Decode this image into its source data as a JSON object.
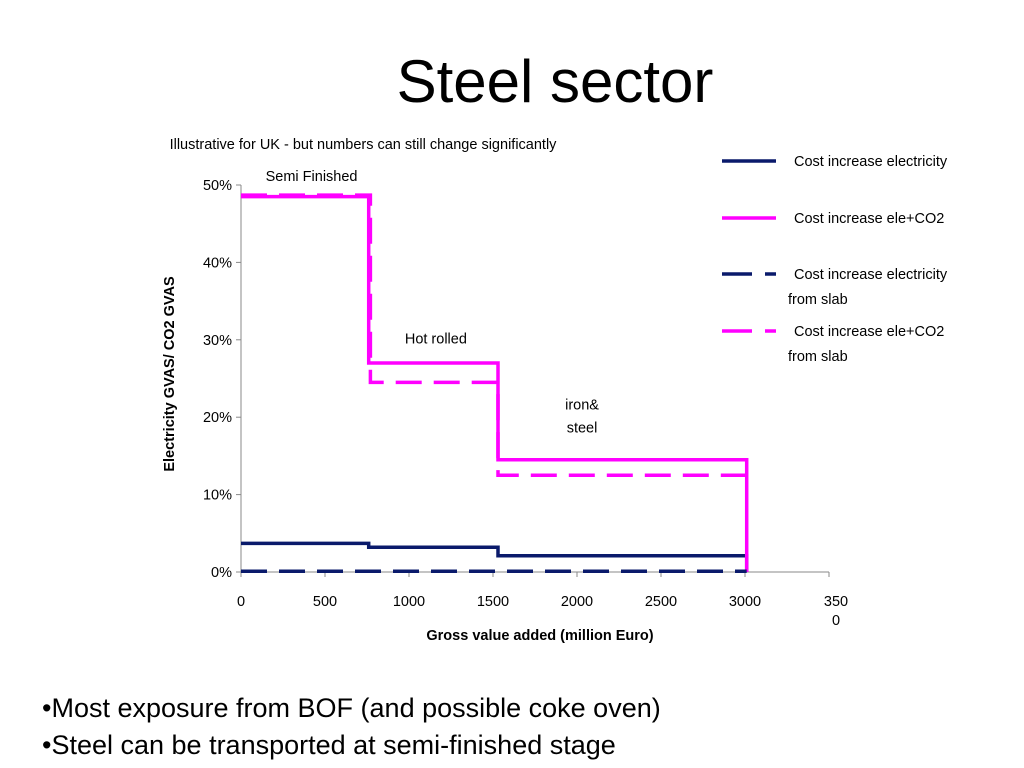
{
  "slide": {
    "title": "Steel sector",
    "bullets": [
      "Most exposure from BOF (and possible coke oven)",
      "Steel can be transported at semi-finished stage"
    ]
  },
  "chart_data": {
    "type": "line",
    "title": "Illustrative for UK - but numbers can still change significantly",
    "xlabel": "Gross value added (million Euro)",
    "ylabel": "Electricity GVAS/ CO2 GVAS",
    "xlim": [
      0,
      3500
    ],
    "ylim": [
      0,
      0.5
    ],
    "x_ticks": [
      "0",
      "500",
      "1000",
      "1500",
      "2000",
      "2500",
      "3000",
      "3500"
    ],
    "y_ticks": [
      "0%",
      "10%",
      "20%",
      "30%",
      "40%",
      "50%"
    ],
    "grid": false,
    "legend_position": "right",
    "step_chart": true,
    "series": [
      {
        "name": "Cost increase electricity",
        "color": "#0a1a6b",
        "dash": false,
        "points": [
          [
            0,
            0.037
          ],
          [
            760,
            0.037
          ],
          [
            760,
            0.032
          ],
          [
            1530,
            0.032
          ],
          [
            1530,
            0.021
          ],
          [
            3010,
            0.021
          ],
          [
            3010,
            0.0
          ]
        ]
      },
      {
        "name": "Cost increase ele+CO2",
        "color": "#ff00ff",
        "dash": false,
        "points": [
          [
            0,
            0.485
          ],
          [
            760,
            0.485
          ],
          [
            760,
            0.27
          ],
          [
            1530,
            0.27
          ],
          [
            1530,
            0.145
          ],
          [
            3010,
            0.145
          ],
          [
            3010,
            0.0
          ]
        ]
      },
      {
        "name": "Cost increase electricity from slab",
        "color": "#0a1a6b",
        "dash": true,
        "points": [
          [
            0,
            0.001
          ],
          [
            3010,
            0.001
          ]
        ]
      },
      {
        "name": "Cost increase ele+CO2 from slab",
        "color": "#ff00ff",
        "dash": true,
        "points": [
          [
            0,
            0.487
          ],
          [
            770,
            0.487
          ],
          [
            770,
            0.245
          ],
          [
            770,
            0.245
          ],
          [
            1530,
            0.245
          ],
          [
            1530,
            0.13
          ],
          [
            1530,
            0.125
          ],
          [
            3010,
            0.125
          ]
        ]
      }
    ],
    "legend": [
      {
        "lines": [
          "Cost increase electricity"
        ],
        "color": "#0a1a6b",
        "dash": false
      },
      {
        "lines": [
          "Cost increase ele+CO2"
        ],
        "color": "#ff00ff",
        "dash": false
      },
      {
        "lines": [
          "Cost increase electricity",
          "from slab"
        ],
        "color": "#0a1a6b",
        "dash": true
      },
      {
        "lines": [
          "Cost increase ele+CO2",
          "from slab"
        ],
        "color": "#ff00ff",
        "dash": true
      }
    ],
    "annotations": [
      {
        "text": "Semi Finished",
        "x": 420,
        "y": 0.505
      },
      {
        "text": "Hot rolled",
        "x": 1160,
        "y": 0.295
      },
      {
        "text": "iron&",
        "x": 2030,
        "y": 0.21
      },
      {
        "text": "steel",
        "x": 2030,
        "y": 0.18
      }
    ]
  }
}
